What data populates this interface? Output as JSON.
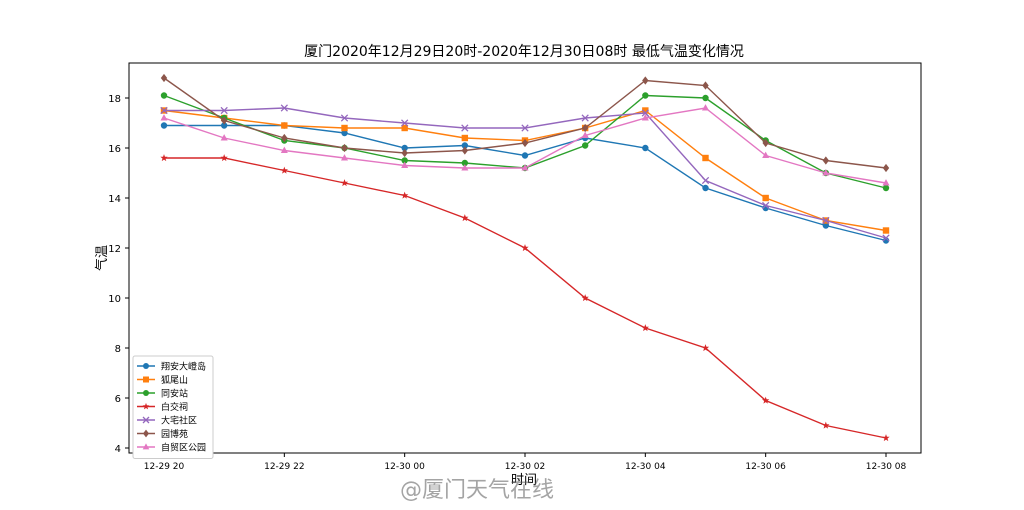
{
  "watermark": "@厦门天气在线",
  "chart_data": {
    "type": "line",
    "title": "厦门2020年12月29日20时-2020年12月30日08时  最低气温变化情况",
    "xlabel": "时间",
    "ylabel": "气温",
    "x": [
      "12-29 20",
      "12-29 21",
      "12-29 22",
      "12-29 23",
      "12-30 00",
      "12-30 01",
      "12-30 02",
      "12-30 03",
      "12-30 04",
      "12-30 05",
      "12-30 06",
      "12-30 07",
      "12-30 08"
    ],
    "x_ticks": [
      "12-29 20",
      "12-29 22",
      "12-30 00",
      "12-30 02",
      "12-30 04",
      "12-30 06",
      "12-30 08"
    ],
    "ylim": [
      3.8,
      19.4
    ],
    "y_ticks": [
      4,
      6,
      8,
      10,
      12,
      14,
      16,
      18
    ],
    "grid": false,
    "legend_position": "lower-left",
    "series": [
      {
        "name": "翔安大嶝岛",
        "color": "#1f77b4",
        "marker": "circle",
        "values": [
          16.9,
          16.9,
          16.9,
          16.6,
          16.0,
          16.1,
          15.7,
          16.4,
          16.0,
          14.4,
          13.6,
          12.9,
          12.3
        ]
      },
      {
        "name": "狐尾山",
        "color": "#ff7f0e",
        "marker": "square",
        "values": [
          17.5,
          17.2,
          16.9,
          16.8,
          16.8,
          16.4,
          16.3,
          16.8,
          17.5,
          15.6,
          14.0,
          13.1,
          12.7
        ]
      },
      {
        "name": "同安站",
        "color": "#2ca02c",
        "marker": "circle",
        "values": [
          18.1,
          17.2,
          16.3,
          16.0,
          15.5,
          15.4,
          15.2,
          16.1,
          18.1,
          18.0,
          16.3,
          15.0,
          14.4
        ]
      },
      {
        "name": "白交祠",
        "color": "#d62728",
        "marker": "star",
        "values": [
          15.6,
          15.6,
          15.1,
          14.6,
          14.1,
          13.2,
          12.0,
          10.0,
          8.8,
          8.0,
          5.9,
          4.9,
          4.4
        ]
      },
      {
        "name": "大宅社区",
        "color": "#9467bd",
        "marker": "x",
        "values": [
          17.5,
          17.5,
          17.6,
          17.2,
          17.0,
          16.8,
          16.8,
          17.2,
          17.4,
          14.7,
          13.7,
          13.1,
          12.4
        ]
      },
      {
        "name": "园博苑",
        "color": "#8c564b",
        "marker": "diamond",
        "values": [
          18.8,
          17.1,
          16.4,
          16.0,
          15.8,
          15.9,
          16.2,
          16.8,
          18.7,
          18.5,
          16.2,
          15.5,
          15.2
        ]
      },
      {
        "name": "自贸区公园",
        "color": "#e377c2",
        "marker": "triangle",
        "values": [
          17.2,
          16.4,
          15.9,
          15.6,
          15.3,
          15.2,
          15.2,
          16.5,
          17.2,
          17.6,
          15.7,
          15.0,
          14.6
        ]
      }
    ]
  }
}
